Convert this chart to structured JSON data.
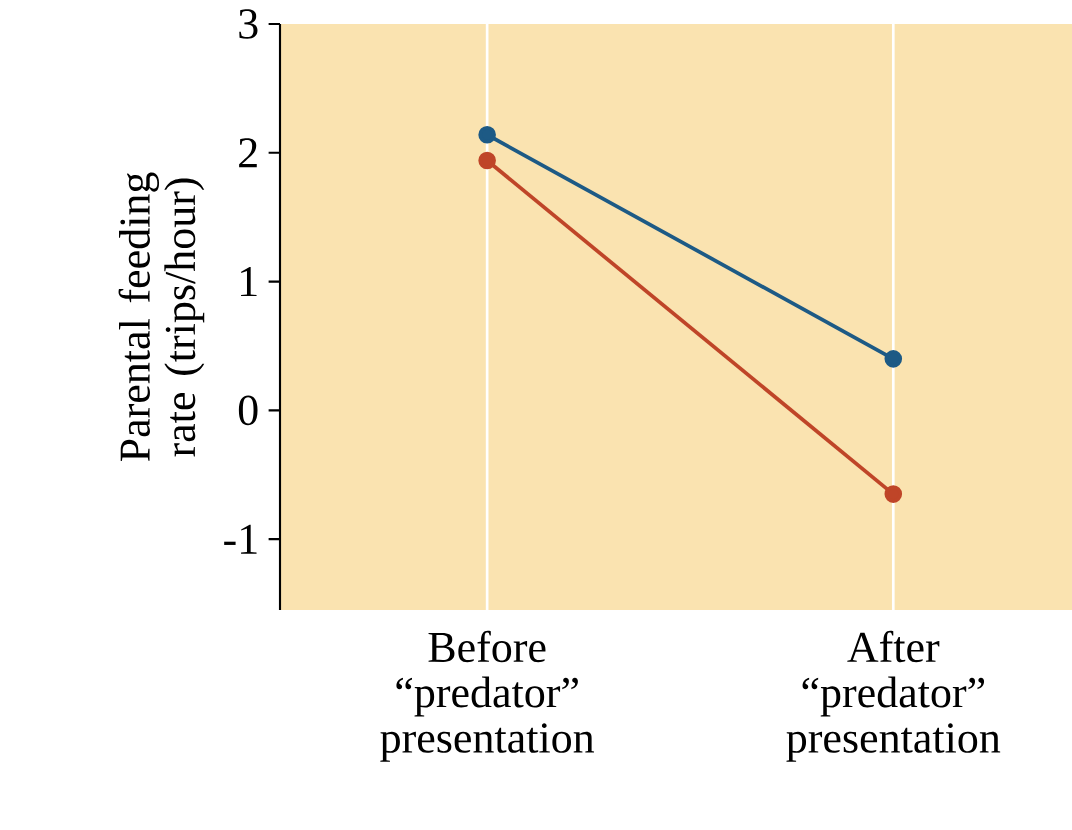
{
  "chart_data": {
    "type": "line",
    "ylabel": "Parental feeding rate (trips/hour)",
    "categories": [
      "Before “predator” presentation",
      "After “predator” presentation"
    ],
    "series": [
      {
        "color": "#1d5a85",
        "values": [
          2.14,
          0.4
        ]
      },
      {
        "color": "#bf4528",
        "values": [
          1.94,
          -0.65
        ]
      }
    ],
    "ylim": [
      -1.55,
      3
    ],
    "yticks": [
      -1,
      0,
      1,
      2,
      3
    ],
    "grid": "x",
    "marker": "circle",
    "line_style": "solid"
  }
}
